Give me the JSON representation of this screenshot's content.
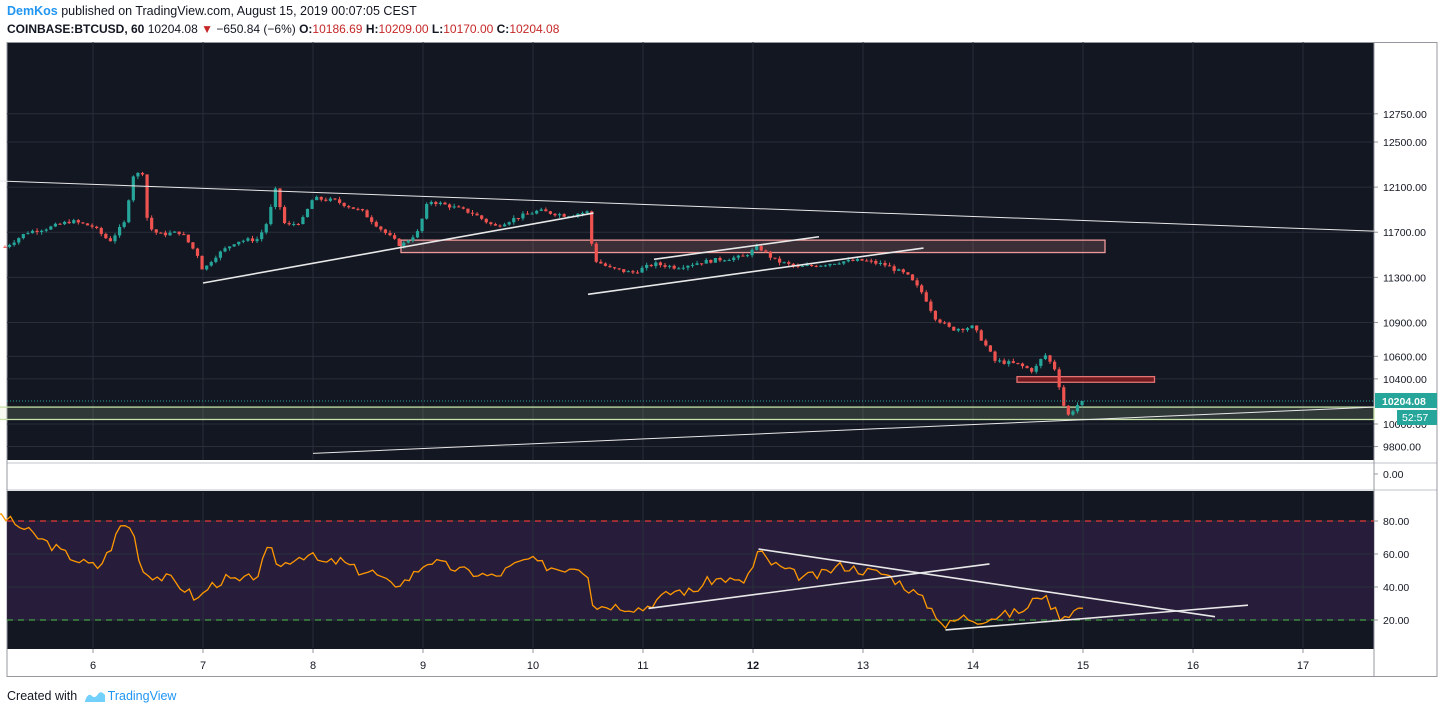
{
  "header": {
    "author": "DemKos",
    "published": "published on TradingView.com, August 15, 2019 00:07:05 CEST",
    "symbol": "COINBASE:BTCUSD, 60",
    "last": "10204.08",
    "change": "−650.84 (−6%)",
    "o_label": "O:",
    "o": "10186.69",
    "h_label": "H:",
    "h": "10209.00",
    "l_label": "L:",
    "l": "10170.00",
    "c_label": "C:",
    "c": "10204.08"
  },
  "footer": {
    "created_with": "Created with",
    "brand": "TradingView"
  },
  "colors": {
    "bg": "#131722",
    "up": "#26a69a",
    "down": "#ef5350",
    "rsi": "#ff9800",
    "rsi_band": "#2a1e3e",
    "ob_line": "#e53935",
    "os_line": "#43a047",
    "price_tag": "#26a69a"
  },
  "chart_data": [
    {
      "type": "candlestick",
      "timeframe": "60",
      "ylim": [
        9700,
        12900
      ],
      "x_ticks": [
        "6",
        "7",
        "8",
        "9",
        "10",
        "11",
        "12",
        "13",
        "14",
        "15",
        "16",
        "17"
      ],
      "y_ticks": [
        "12750.00",
        "12500.00",
        "12100.00",
        "11700.00",
        "11300.00",
        "10900.00",
        "10600.00",
        "10400.00",
        "10000.00",
        "9800.00"
      ],
      "last_price_label": "10204.08",
      "countdown": "52:57",
      "close_path": [
        [
          5.2,
          11570
        ],
        [
          5.4,
          11700
        ],
        [
          5.6,
          11740
        ],
        [
          5.8,
          11800
        ],
        [
          6.0,
          11750
        ],
        [
          6.15,
          11620
        ],
        [
          6.3,
          11800
        ],
        [
          6.35,
          12200
        ],
        [
          6.45,
          12230
        ],
        [
          6.5,
          11750
        ],
        [
          6.6,
          11680
        ],
        [
          6.8,
          11700
        ],
        [
          6.95,
          11500
        ],
        [
          7.0,
          11360
        ],
        [
          7.1,
          11480
        ],
        [
          7.3,
          11620
        ],
        [
          7.5,
          11640
        ],
        [
          7.6,
          11820
        ],
        [
          7.65,
          12100
        ],
        [
          7.75,
          11750
        ],
        [
          7.9,
          11800
        ],
        [
          8.0,
          12000
        ],
        [
          8.2,
          11980
        ],
        [
          8.45,
          11880
        ],
        [
          8.65,
          11700
        ],
        [
          8.8,
          11580
        ],
        [
          8.95,
          11700
        ],
        [
          9.05,
          11980
        ],
        [
          9.25,
          11930
        ],
        [
          9.45,
          11870
        ],
        [
          9.65,
          11750
        ],
        [
          9.85,
          11830
        ],
        [
          10.05,
          11890
        ],
        [
          10.3,
          11850
        ],
        [
          10.5,
          11880
        ],
        [
          10.55,
          11460
        ],
        [
          10.7,
          11380
        ],
        [
          10.9,
          11340
        ],
        [
          11.1,
          11420
        ],
        [
          11.3,
          11390
        ],
        [
          11.5,
          11430
        ],
        [
          11.7,
          11460
        ],
        [
          11.9,
          11480
        ],
        [
          12.05,
          11570
        ],
        [
          12.2,
          11450
        ],
        [
          12.4,
          11390
        ],
        [
          12.6,
          11410
        ],
        [
          12.8,
          11440
        ],
        [
          13.0,
          11450
        ],
        [
          13.2,
          11410
        ],
        [
          13.4,
          11320
        ],
        [
          13.55,
          11150
        ],
        [
          13.65,
          10950
        ],
        [
          13.8,
          10840
        ],
        [
          14.0,
          10860
        ],
        [
          14.1,
          10720
        ],
        [
          14.2,
          10560
        ],
        [
          14.4,
          10530
        ],
        [
          14.55,
          10470
        ],
        [
          14.65,
          10620
        ],
        [
          14.75,
          10480
        ],
        [
          14.85,
          10060
        ],
        [
          14.95,
          10170
        ],
        [
          15.0,
          10204
        ]
      ],
      "zones": [
        {
          "name": "resistance-zone",
          "from": 11520,
          "to": 11630,
          "x": [
            8.8,
            15.2
          ]
        },
        {
          "name": "small-resistance-zone",
          "from": 10370,
          "to": 10420,
          "x": [
            14.4,
            15.65
          ]
        },
        {
          "name": "support-zone",
          "from": 10040,
          "to": 10150,
          "x": [
            5.0,
            17.65
          ]
        }
      ],
      "trendlines": [
        {
          "name": "long-descending",
          "p1": [
            5.0,
            12160
          ],
          "p2": [
            17.7,
            11710
          ]
        },
        {
          "name": "ascending-1",
          "p1": [
            7.0,
            11250
          ],
          "p2": [
            10.55,
            11870
          ]
        },
        {
          "name": "channel-lower",
          "p1": [
            10.5,
            11150
          ],
          "p2": [
            13.55,
            11560
          ]
        },
        {
          "name": "channel-upper",
          "p1": [
            11.1,
            11460
          ],
          "p2": [
            12.6,
            11660
          ]
        },
        {
          "name": "long-ascending",
          "p1": [
            8.0,
            9740
          ],
          "p2": [
            17.7,
            10150
          ]
        }
      ]
    },
    {
      "type": "line",
      "title": "",
      "ylim": [
        -5,
        97
      ],
      "y_ticks": [
        "80.00",
        "60.00",
        "40.00",
        "20.00",
        "0.00"
      ],
      "overbought": 80,
      "oversold": 20,
      "series": [
        {
          "x": [
            5.0,
            5.15,
            5.3,
            5.45,
            5.6,
            5.75,
            5.9,
            6.05,
            6.15,
            6.25,
            6.35,
            6.45,
            6.5,
            6.6,
            6.7,
            6.85,
            6.95,
            7.05,
            7.2,
            7.35,
            7.5,
            7.6,
            7.7,
            7.8,
            7.95,
            8.1,
            8.25,
            8.4,
            8.55,
            8.7,
            8.85,
            8.95,
            9.05,
            9.2,
            9.35,
            9.5,
            9.65,
            9.8,
            9.95,
            10.1,
            10.25,
            10.4,
            10.5,
            10.55,
            10.7,
            10.85,
            11.0,
            11.15,
            11.3,
            11.45,
            11.6,
            11.75,
            11.9,
            12.0,
            12.05,
            12.15,
            12.3,
            12.45,
            12.6,
            12.8,
            13.0,
            13.2,
            13.35,
            13.5,
            13.65,
            13.75,
            13.9,
            14.05,
            14.2,
            14.35,
            14.5,
            14.6,
            14.7,
            14.8,
            14.9,
            15.0
          ],
          "y": [
            86,
            84,
            78,
            72,
            66,
            60,
            55,
            52,
            62,
            77,
            77,
            50,
            48,
            46,
            45,
            38,
            32,
            40,
            45,
            43,
            48,
            64,
            52,
            57,
            60,
            54,
            56,
            50,
            49,
            41,
            44,
            50,
            56,
            53,
            50,
            48,
            46,
            52,
            57,
            53,
            51,
            53,
            48,
            28,
            29,
            28,
            27,
            33,
            38,
            37,
            44,
            45,
            42,
            52,
            62,
            55,
            50,
            46,
            47,
            53,
            50,
            48,
            42,
            35,
            25,
            16,
            22,
            20,
            22,
            24,
            27,
            37,
            30,
            22,
            25,
            28
          ]
        }
      ],
      "trendlines": [
        {
          "name": "rsi-ascending",
          "p1": [
            11.05,
            27
          ],
          "p2": [
            14.15,
            54
          ]
        },
        {
          "name": "rsi-descending",
          "p1": [
            12.05,
            63
          ],
          "p2": [
            16.2,
            22
          ]
        },
        {
          "name": "rsi-support",
          "p1": [
            13.75,
            14
          ],
          "p2": [
            16.5,
            29
          ]
        }
      ]
    }
  ]
}
